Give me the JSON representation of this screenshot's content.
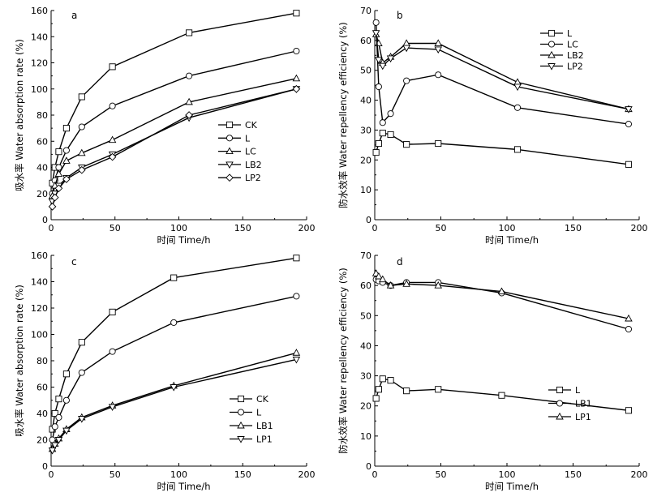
{
  "chart_data": [
    {
      "type": "line",
      "panel_label": "a",
      "xlabel": "时间  Time/h",
      "ylabel": "吸水率  Water absorption rate (%)",
      "xlim": [
        0,
        200
      ],
      "ylim": [
        0,
        160
      ],
      "xticks": [
        0,
        50,
        100,
        150,
        200
      ],
      "yticks": [
        0,
        20,
        40,
        60,
        80,
        100,
        120,
        140,
        160
      ],
      "legend_position": "lower-right",
      "series": [
        {
          "name": "CK",
          "marker": "square",
          "x": [
            1,
            3,
            6,
            12,
            24,
            48,
            108,
            192
          ],
          "y": [
            28,
            40,
            52,
            70,
            94,
            117,
            143,
            158
          ]
        },
        {
          "name": "L",
          "marker": "circle",
          "x": [
            1,
            3,
            6,
            12,
            24,
            48,
            108,
            192
          ],
          "y": [
            20,
            30,
            40,
            53,
            71,
            87,
            110,
            129
          ]
        },
        {
          "name": "LC",
          "marker": "triangle-up",
          "x": [
            1,
            3,
            6,
            12,
            24,
            48,
            108,
            192
          ],
          "y": [
            18,
            26,
            35,
            45,
            51,
            61,
            90,
            108
          ]
        },
        {
          "name": "LB2",
          "marker": "triangle-down",
          "x": [
            1,
            3,
            6,
            12,
            24,
            48,
            108,
            192
          ],
          "y": [
            14,
            20,
            26,
            32,
            40,
            50,
            78,
            100
          ]
        },
        {
          "name": "LP2",
          "marker": "diamond",
          "x": [
            1,
            3,
            6,
            12,
            24,
            48,
            108,
            192
          ],
          "y": [
            10,
            17,
            24,
            31,
            38,
            48,
            80,
            100
          ]
        }
      ]
    },
    {
      "type": "line",
      "panel_label": "b",
      "xlabel": "时间  Time/h",
      "ylabel": "防水效率  Water repellency efficiency (%)",
      "xlim": [
        0,
        200
      ],
      "ylim": [
        0,
        70
      ],
      "xticks": [
        0,
        50,
        100,
        150,
        200
      ],
      "yticks": [
        0,
        10,
        20,
        30,
        40,
        50,
        60,
        70
      ],
      "legend_position": "top-right",
      "series": [
        {
          "name": "L",
          "marker": "square",
          "x": [
            1,
            3,
            6,
            12,
            24,
            48,
            108,
            192
          ],
          "y": [
            22.5,
            25.5,
            29,
            28.5,
            25.2,
            25.5,
            23.5,
            18.5
          ]
        },
        {
          "name": "LC",
          "marker": "circle",
          "x": [
            1,
            3,
            6,
            12,
            24,
            48,
            108,
            192
          ],
          "y": [
            66,
            44.5,
            32.5,
            35.5,
            46.5,
            48.5,
            37.5,
            32
          ]
        },
        {
          "name": "LB2",
          "marker": "triangle-up",
          "x": [
            1,
            3,
            6,
            12,
            24,
            48,
            108,
            192
          ],
          "y": [
            62,
            59,
            52.5,
            54.5,
            59,
            59,
            46,
            37
          ]
        },
        {
          "name": "LP2",
          "marker": "triangle-down",
          "x": [
            1,
            3,
            6,
            12,
            24,
            48,
            108,
            192
          ],
          "y": [
            62.5,
            53.5,
            51.5,
            54,
            57.5,
            57,
            44.5,
            37
          ]
        }
      ]
    },
    {
      "type": "line",
      "panel_label": "c",
      "xlabel": "时间  Time/h",
      "ylabel": "吸水率  Water absorption rate (%)",
      "xlim": [
        0,
        200
      ],
      "ylim": [
        0,
        160
      ],
      "xticks": [
        0,
        50,
        100,
        150,
        200
      ],
      "yticks": [
        0,
        20,
        40,
        60,
        80,
        100,
        120,
        140,
        160
      ],
      "legend_position": "lower-right",
      "series": [
        {
          "name": "CK",
          "marker": "square",
          "x": [
            1,
            3,
            6,
            12,
            24,
            48,
            96,
            192
          ],
          "y": [
            28,
            40,
            51,
            70,
            94,
            117,
            143,
            158
          ]
        },
        {
          "name": "L",
          "marker": "circle",
          "x": [
            1,
            3,
            6,
            12,
            24,
            48,
            96,
            192
          ],
          "y": [
            20,
            30,
            37,
            50,
            71,
            87,
            109,
            129
          ]
        },
        {
          "name": "LB1",
          "marker": "triangle-up",
          "x": [
            1,
            3,
            6,
            12,
            24,
            48,
            96,
            192
          ],
          "y": [
            13,
            17,
            21,
            28,
            37,
            46,
            61,
            86
          ]
        },
        {
          "name": "LP1",
          "marker": "triangle-down",
          "x": [
            1,
            3,
            6,
            12,
            24,
            48,
            96,
            192
          ],
          "y": [
            12,
            16,
            20,
            27,
            36,
            45,
            60,
            81
          ]
        }
      ]
    },
    {
      "type": "line",
      "panel_label": "d",
      "xlabel": "时间  Time/h",
      "ylabel": "防水效率  Water repellency efficiency (%)",
      "xlim": [
        0,
        200
      ],
      "ylim": [
        0,
        70
      ],
      "xticks": [
        0,
        50,
        100,
        150,
        200
      ],
      "yticks": [
        0,
        10,
        20,
        30,
        40,
        50,
        60,
        70
      ],
      "legend_position": "lower-right",
      "series": [
        {
          "name": "L",
          "marker": "square",
          "x": [
            1,
            3,
            6,
            12,
            24,
            48,
            96,
            192
          ],
          "y": [
            22.5,
            25.5,
            29,
            28.5,
            25,
            25.5,
            23.5,
            18.5
          ]
        },
        {
          "name": "LB1",
          "marker": "circle",
          "x": [
            1,
            3,
            6,
            12,
            24,
            48,
            96,
            192
          ],
          "y": [
            62,
            61.5,
            61,
            60,
            61,
            61,
            57.5,
            45.5
          ]
        },
        {
          "name": "LP1",
          "marker": "triangle-up",
          "x": [
            1,
            3,
            6,
            12,
            24,
            48,
            96,
            192
          ],
          "y": [
            64,
            63,
            62,
            60,
            60.5,
            60,
            58,
            49
          ]
        }
      ]
    }
  ]
}
